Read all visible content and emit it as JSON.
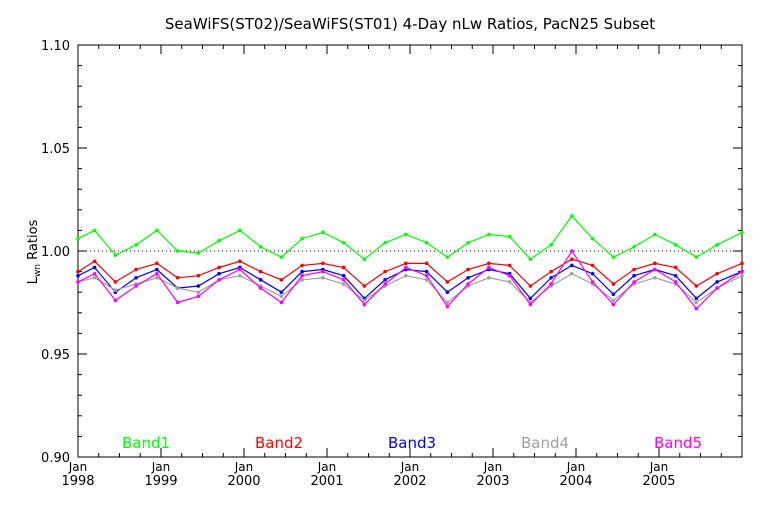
{
  "chart_data": {
    "type": "line",
    "title": "SeaWiFS(ST02)/SeaWiFS(ST01) 4-Day nLw Ratios, PacN25 Subset",
    "ylabel_main": "L",
    "ylabel_sub": "wn",
    "ylabel_rest": " Ratios",
    "xlabel": "",
    "xlim": [
      1998.0,
      2006.0
    ],
    "ylim": [
      0.9,
      1.1
    ],
    "reference_line": 1.0,
    "y_ticks": [
      {
        "value": 0.9,
        "label": "0.90"
      },
      {
        "value": 0.95,
        "label": "0.95"
      },
      {
        "value": 1.0,
        "label": "1.00"
      },
      {
        "value": 1.05,
        "label": "1.05"
      },
      {
        "value": 1.1,
        "label": "1.10"
      }
    ],
    "x_ticks": [
      {
        "value": 1998,
        "month": "Jan",
        "year": "1998"
      },
      {
        "value": 1999,
        "month": "Jan",
        "year": "1999"
      },
      {
        "value": 2000,
        "month": "Jan",
        "year": "2000"
      },
      {
        "value": 2001,
        "month": "Jan",
        "year": "2001"
      },
      {
        "value": 2002,
        "month": "Jan",
        "year": "2002"
      },
      {
        "value": 2003,
        "month": "Jan",
        "year": "2003"
      },
      {
        "value": 2004,
        "month": "Jan",
        "year": "2004"
      },
      {
        "value": 2005,
        "month": "Jan",
        "year": "2005"
      }
    ],
    "x": [
      1998.0,
      1998.2,
      1998.45,
      1998.7,
      1998.95,
      1999.2,
      1999.45,
      1999.7,
      1999.95,
      2000.2,
      2000.45,
      2000.7,
      2000.95,
      2001.2,
      2001.45,
      2001.7,
      2001.95,
      2002.2,
      2002.45,
      2002.7,
      2002.95,
      2003.2,
      2003.45,
      2003.7,
      2003.95,
      2004.2,
      2004.45,
      2004.7,
      2004.95,
      2005.2,
      2005.45,
      2005.7,
      2006.0
    ],
    "series": [
      {
        "name": "Band1",
        "color": "#00ff00",
        "values": [
          1.006,
          1.01,
          0.998,
          1.003,
          1.01,
          1.0,
          0.999,
          1.005,
          1.01,
          1.002,
          0.997,
          1.006,
          1.009,
          1.004,
          0.996,
          1.004,
          1.008,
          1.004,
          0.997,
          1.004,
          1.008,
          1.007,
          0.996,
          1.003,
          1.017,
          1.006,
          0.997,
          1.002,
          1.008,
          1.003,
          0.997,
          1.003,
          1.009
        ]
      },
      {
        "name": "Band2",
        "color": "#ff0000",
        "values": [
          0.99,
          0.995,
          0.985,
          0.991,
          0.994,
          0.987,
          0.988,
          0.992,
          0.995,
          0.99,
          0.986,
          0.993,
          0.994,
          0.992,
          0.983,
          0.99,
          0.994,
          0.994,
          0.985,
          0.991,
          0.994,
          0.993,
          0.983,
          0.99,
          0.996,
          0.993,
          0.984,
          0.991,
          0.994,
          0.992,
          0.983,
          0.989,
          0.994
        ]
      },
      {
        "name": "Band3",
        "color": "#0000ff",
        "values": [
          0.988,
          0.992,
          0.98,
          0.987,
          0.991,
          0.982,
          0.983,
          0.989,
          0.992,
          0.986,
          0.98,
          0.99,
          0.991,
          0.988,
          0.977,
          0.986,
          0.991,
          0.99,
          0.98,
          0.987,
          0.991,
          0.989,
          0.977,
          0.987,
          0.993,
          0.989,
          0.979,
          0.988,
          0.991,
          0.988,
          0.977,
          0.985,
          0.99
        ]
      },
      {
        "name": "Band4",
        "color": "#a0a0a0",
        "values": [
          0.985,
          0.987,
          0.981,
          0.984,
          0.987,
          0.982,
          0.98,
          0.986,
          0.988,
          0.983,
          0.978,
          0.986,
          0.987,
          0.984,
          0.976,
          0.983,
          0.988,
          0.986,
          0.975,
          0.983,
          0.987,
          0.985,
          0.975,
          0.983,
          0.989,
          0.984,
          0.976,
          0.984,
          0.987,
          0.984,
          0.975,
          0.982,
          0.988
        ]
      },
      {
        "name": "Band5",
        "color": "#ff00ff",
        "values": [
          0.985,
          0.989,
          0.976,
          0.983,
          0.989,
          0.975,
          0.978,
          0.986,
          0.991,
          0.982,
          0.975,
          0.988,
          0.99,
          0.986,
          0.974,
          0.984,
          0.992,
          0.988,
          0.973,
          0.984,
          0.992,
          0.988,
          0.974,
          0.984,
          1.0,
          0.985,
          0.974,
          0.985,
          0.991,
          0.985,
          0.972,
          0.982,
          0.99
        ]
      }
    ]
  }
}
